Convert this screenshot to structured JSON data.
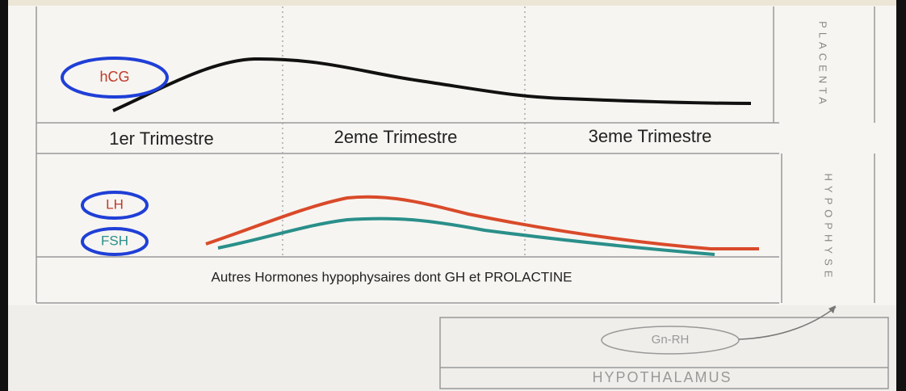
{
  "placenta": {
    "label": "PLACENTA",
    "hormone": "hCG"
  },
  "trimesters": [
    "1er Trimestre",
    "2eme Trimestre",
    "3eme Trimestre"
  ],
  "hypophyse": {
    "label": "HYPOPHYSE",
    "hormones": [
      "LH",
      "FSH"
    ],
    "note": "Autres Hormones hypophysaires dont GH et PROLACTINE"
  },
  "hypothalamus": {
    "label": "HYPOTHALAMUS",
    "hormone": "Gn-RH"
  }
}
